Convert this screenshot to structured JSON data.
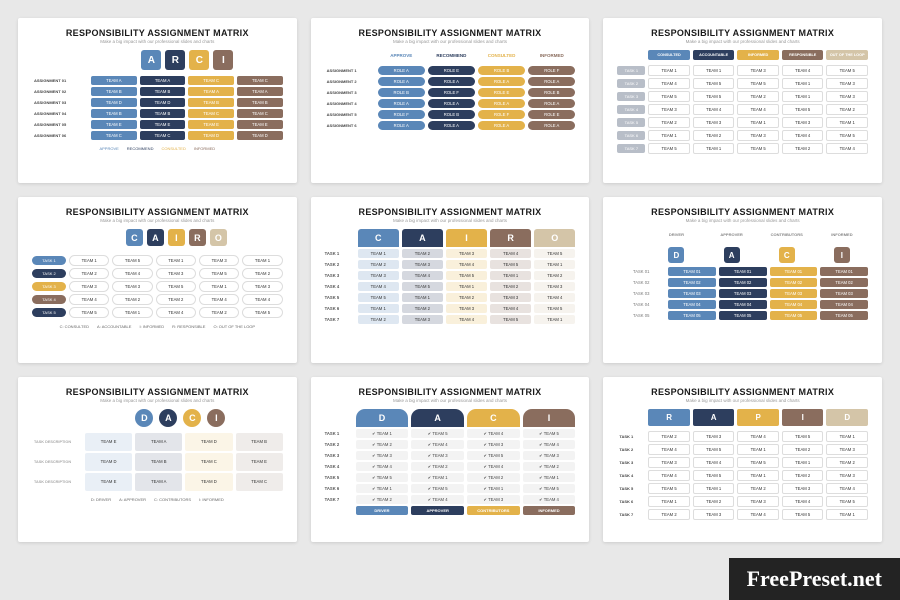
{
  "watermark": "FreePreset.net",
  "common": {
    "title": "RESPONSIBILITY ASSIGNMENT MATRIX",
    "subtitle": "Make a big impact with our professional slides and charts"
  },
  "palette": {
    "blue": "#5a87b8",
    "navy": "#2d3e5e",
    "gold": "#e3b24a",
    "brown": "#8a6d5e",
    "beige": "#d4c5a8",
    "ltgrey": "#e8ebef",
    "grey": "#b8bec8"
  },
  "s1": {
    "letters": [
      "A",
      "R",
      "C",
      "I"
    ],
    "letterColors": [
      "#5a87b8",
      "#2d3e5e",
      "#e3b24a",
      "#8a6d5e"
    ],
    "rows": [
      "ASSIGNMENT 01",
      "ASSIGNMENT 02",
      "ASSIGNMENT 03",
      "ASSIGNMENT 04",
      "ASSIGNMENT 05",
      "ASSIGNMENT 06"
    ],
    "cells": [
      [
        "TEAM A",
        "TEAM A",
        "TEAM C",
        "TEAM C"
      ],
      [
        "TEAM B",
        "TEAM B",
        "TEAM A",
        "TEAM A"
      ],
      [
        "TEAM D",
        "TEAM D",
        "TEAM B",
        "TEAM B"
      ],
      [
        "TEAM B",
        "TEAM B",
        "TEAM C",
        "TEAM C"
      ],
      [
        "TEAM E",
        "TEAM E",
        "TEAM E",
        "TEAM E"
      ],
      [
        "TEAM C",
        "TEAM C",
        "TEAM D",
        "TEAM D"
      ]
    ],
    "colColors": [
      "#5a87b8",
      "#2d3e5e",
      "#e3b24a",
      "#8a6d5e"
    ],
    "legend": [
      "APPROVE",
      "RECOMMEND",
      "CONSULTED",
      "INFORMED"
    ]
  },
  "s2": {
    "headers": [
      "APPROVE",
      "RECOMMEND",
      "CONSULTED",
      "INFORMED"
    ],
    "headerColors": [
      "#5a87b8",
      "#2d3e5e",
      "#e3b24a",
      "#8a6d5e"
    ],
    "rows": [
      "ASSIGNMENT 1",
      "ASSIGNMENT 2",
      "ASSIGNMENT 3",
      "ASSIGNMENT 4",
      "ASSIGNMENT 5",
      "ASSIGNMENT 6"
    ],
    "cells": [
      [
        "ROLE A",
        "ROLE E",
        "ROLE B",
        "ROLE F"
      ],
      [
        "ROLE A",
        "ROLE A",
        "ROLE A",
        "ROLE A"
      ],
      [
        "ROLE B",
        "ROLE F",
        "ROLE E",
        "ROLE B"
      ],
      [
        "ROLE A",
        "ROLE A",
        "ROLE A",
        "ROLE A"
      ],
      [
        "ROLE F",
        "ROLE B",
        "ROLE F",
        "ROLE E"
      ],
      [
        "ROLE A",
        "ROLE A",
        "ROLE A",
        "ROLE A"
      ]
    ]
  },
  "s3": {
    "headers": [
      "CONSULTED",
      "ACCOUNTABLE",
      "INFORMED",
      "RESPONSIBLE",
      "OUT OF THE LOOP"
    ],
    "headerColors": [
      "#5a87b8",
      "#2d3e5e",
      "#e3b24a",
      "#8a6d5e",
      "#d4c5a8"
    ],
    "rows": [
      "TASK 1",
      "TASK 2",
      "TASK 3",
      "TASK 4",
      "TASK 5",
      "TASK 6",
      "TASK 7"
    ],
    "cells": [
      [
        "TEAM 1",
        "TEAM 1",
        "TEAM 3",
        "TEAM 4",
        "TEAM 5"
      ],
      [
        "TEAM 4",
        "TEAM 5",
        "TEAM 5",
        "TEAM 1",
        "TEAM 3"
      ],
      [
        "TEAM 5",
        "TEAM 5",
        "TEAM 2",
        "TEAM 1",
        "TEAM 3"
      ],
      [
        "TEAM 3",
        "TEAM 4",
        "TEAM 4",
        "TEAM 5",
        "TEAM 2"
      ],
      [
        "TEAM 2",
        "TEAM 3",
        "TEAM 1",
        "TEAM 3",
        "TEAM 1"
      ],
      [
        "TEAM 1",
        "TEAM 2",
        "TEAM 3",
        "TEAM 4",
        "TEAM 5"
      ],
      [
        "TEAM 5",
        "TEAM 1",
        "TEAM 5",
        "TEAM 2",
        "TEAM 4"
      ]
    ]
  },
  "s4": {
    "letters": [
      "C",
      "A",
      "I",
      "R",
      "O"
    ],
    "letterColors": [
      "#5a87b8",
      "#2d3e5e",
      "#e3b24a",
      "#8a6d5e",
      "#d4c5a8"
    ],
    "rows": [
      "TASK 1",
      "TASK 2",
      "TASK 3",
      "TASK 4",
      "TASK 5"
    ],
    "rowColors": [
      "#5a87b8",
      "#2d3e5e",
      "#e3b24a",
      "#8a6d5e",
      "#2d3e5e"
    ],
    "cells": [
      [
        "TEAM 1",
        "TEAM 5",
        "TEAM 1",
        "TEAM 3",
        "TEAM 1"
      ],
      [
        "TEAM 2",
        "TEAM 4",
        "TEAM 3",
        "TEAM 5",
        "TEAM 2"
      ],
      [
        "TEAM 3",
        "TEAM 3",
        "TEAM 5",
        "TEAM 1",
        "TEAM 3"
      ],
      [
        "TEAM 4",
        "TEAM 2",
        "TEAM 2",
        "TEAM 4",
        "TEAM 4"
      ],
      [
        "TEAM 5",
        "TEAM 1",
        "TEAM 4",
        "TEAM 2",
        "TEAM 5"
      ]
    ],
    "legend": [
      "C: CONSULTED",
      "A: ACCOUNTABLE",
      "I: INFORMED",
      "R: RESPONSIBLE",
      "O: OUT OF THE LOOP"
    ]
  },
  "s5": {
    "letters": [
      "C",
      "A",
      "I",
      "R",
      "O"
    ],
    "letterColors": [
      "#5a87b8",
      "#2d3e5e",
      "#e3b24a",
      "#8a6d5e",
      "#d4c5a8"
    ],
    "rows": [
      "TASK 1",
      "TASK 2",
      "TASK 3",
      "TASK 4",
      "TASK 5",
      "TASK 6",
      "TASK 7"
    ],
    "cells": [
      [
        "TEAM 1",
        "TEAM 2",
        "TEAM 3",
        "TEAM 4",
        "TEAM 5"
      ],
      [
        "TEAM 2",
        "TEAM 3",
        "TEAM 4",
        "TEAM 5",
        "TEAM 1"
      ],
      [
        "TEAM 3",
        "TEAM 4",
        "TEAM 5",
        "TEAM 1",
        "TEAM 2"
      ],
      [
        "TEAM 4",
        "TEAM 5",
        "TEAM 1",
        "TEAM 2",
        "TEAM 3"
      ],
      [
        "TEAM 5",
        "TEAM 1",
        "TEAM 2",
        "TEAM 3",
        "TEAM 4"
      ],
      [
        "TEAM 1",
        "TEAM 2",
        "TEAM 3",
        "TEAM 4",
        "TEAM 5"
      ],
      [
        "TEAM 2",
        "TEAM 3",
        "TEAM 4",
        "TEAM 5",
        "TEAM 1"
      ]
    ]
  },
  "s6": {
    "headers": [
      "DRIVER",
      "APPROVER",
      "CONTRIBUTORS",
      "INFORMED"
    ],
    "circles": [
      "D",
      "A",
      "C",
      "I"
    ],
    "circleColors": [
      "#5a87b8",
      "#2d3e5e",
      "#e3b24a",
      "#8a6d5e"
    ],
    "rows": [
      "TASK 01",
      "TASK 02",
      "TASK 03",
      "TASK 04",
      "TASK 05"
    ],
    "cells": [
      [
        "TEAM 01",
        "TEAM 01",
        "TEAM 01",
        "TEAM 01"
      ],
      [
        "TEAM 02",
        "TEAM 02",
        "TEAM 02",
        "TEAM 02"
      ],
      [
        "TEAM 03",
        "TEAM 03",
        "TEAM 03",
        "TEAM 03"
      ],
      [
        "TEAM 04",
        "TEAM 04",
        "TEAM 04",
        "TEAM 04"
      ],
      [
        "TEAM 05",
        "TEAM 05",
        "TEAM 05",
        "TEAM 05"
      ]
    ]
  },
  "s7": {
    "circles": [
      "D",
      "A",
      "C",
      "I"
    ],
    "circleColors": [
      "#5a87b8",
      "#2d3e5e",
      "#e3b24a",
      "#8a6d5e"
    ],
    "rows": [
      "TASK DESCRIPTION",
      "TASK DESCRIPTION",
      "TASK DESCRIPTION"
    ],
    "cells": [
      [
        "TEAM E",
        "TEAM A",
        "TEAM D",
        "TEAM B"
      ],
      [
        "TEAM D",
        "TEAM B",
        "TEAM C",
        "TEAM E"
      ],
      [
        "TEAM E",
        "TEAM A",
        "TEAM D",
        "TEAM C"
      ]
    ],
    "legend": [
      "D: DRIVER",
      "A: APPROVER",
      "C: CONTRIBUTORS",
      "I: INFORMED"
    ]
  },
  "s8": {
    "letters": [
      "D",
      "A",
      "C",
      "I"
    ],
    "letterColors": [
      "#5a87b8",
      "#2d3e5e",
      "#e3b24a",
      "#8a6d5e"
    ],
    "rows": [
      "TASK 1",
      "TASK 2",
      "TASK 3",
      "TASK 4",
      "TASK 5",
      "TASK 6",
      "TASK 7"
    ],
    "cells": [
      [
        "TEAM 1",
        "TEAM 5",
        "TEAM 4",
        "TEAM 5"
      ],
      [
        "TEAM 2",
        "TEAM 4",
        "TEAM 3",
        "TEAM 4"
      ],
      [
        "TEAM 3",
        "TEAM 3",
        "TEAM 5",
        "TEAM 3"
      ],
      [
        "TEAM 4",
        "TEAM 2",
        "TEAM 4",
        "TEAM 2"
      ],
      [
        "TEAM 5",
        "TEAM 1",
        "TEAM 2",
        "TEAM 1"
      ],
      [
        "TEAM 1",
        "TEAM 5",
        "TEAM 1",
        "TEAM 5"
      ],
      [
        "TEAM 2",
        "TEAM 4",
        "TEAM 3",
        "TEAM 4"
      ]
    ],
    "footer": [
      "DRIVER",
      "APPROVER",
      "CONTRIBUTORS",
      "INFORMED"
    ]
  },
  "s9": {
    "letters": [
      "R",
      "A",
      "P",
      "I",
      "D"
    ],
    "letterColors": [
      "#5a87b8",
      "#2d3e5e",
      "#e3b24a",
      "#8a6d5e",
      "#d4c5a8"
    ],
    "rows": [
      "TASK 1",
      "TASK 2",
      "TASK 3",
      "TASK 4",
      "TASK 5",
      "TASK 6",
      "TASK 7"
    ],
    "cells": [
      [
        "TEAM 2",
        "TEAM 3",
        "TEAM 4",
        "TEAM 5",
        "TEAM 1"
      ],
      [
        "TEAM 4",
        "TEAM 5",
        "TEAM 1",
        "TEAM 2",
        "TEAM 3"
      ],
      [
        "TEAM 3",
        "TEAM 4",
        "TEAM 5",
        "TEAM 1",
        "TEAM 2"
      ],
      [
        "TEAM 4",
        "TEAM 5",
        "TEAM 1",
        "TEAM 2",
        "TEAM 3"
      ],
      [
        "TEAM 5",
        "TEAM 1",
        "TEAM 2",
        "TEAM 3",
        "TEAM 4"
      ],
      [
        "TEAM 1",
        "TEAM 2",
        "TEAM 3",
        "TEAM 4",
        "TEAM 5"
      ],
      [
        "TEAM 2",
        "TEAM 3",
        "TEAM 4",
        "TEAM 5",
        "TEAM 1"
      ]
    ]
  }
}
